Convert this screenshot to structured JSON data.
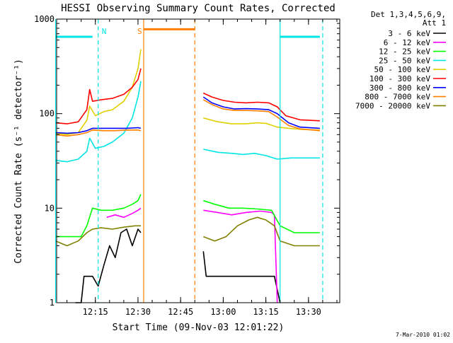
{
  "chart_data": {
    "type": "line",
    "title": "HESSI Observing Summary Count Rates, Corrected",
    "xlabel": "Start Time (09-Nov-03 12:01:22)",
    "ylabel": "Corrected Count Rate (s⁻¹ detector⁻¹)",
    "y_scale": "log",
    "ylim": [
      1,
      1000
    ],
    "y_tick_labels": [
      "1",
      "10",
      "100",
      "1000"
    ],
    "x_unit": "HH:MM (09-Nov-03)",
    "xlim": [
      "12:01:22",
      "13:41:00"
    ],
    "x_tick_labels": [
      "12:15",
      "12:30",
      "12:45",
      "13:00",
      "13:15",
      "13:30"
    ],
    "legend_position": "top-right outside plot",
    "legend_header": [
      "Det 1,3,4,5,6,9,",
      "Att 1"
    ],
    "series": [
      {
        "name": "3 - 6 keV",
        "color": "#000000",
        "segments": [
          [
            [
              "12:08",
              "1.0"
            ],
            [
              "12:10",
              "1.0"
            ],
            [
              "12:11",
              "1.9"
            ],
            [
              "12:14",
              "1.9"
            ],
            [
              "12:16",
              "1.5"
            ],
            [
              "12:18",
              "2.5"
            ],
            [
              "12:20",
              "4.0"
            ],
            [
              "12:22",
              "3.0"
            ],
            [
              "12:24",
              "5.5"
            ],
            [
              "12:26",
              "6.0"
            ],
            [
              "12:28",
              "4.0"
            ],
            [
              "12:30",
              "6.0"
            ],
            [
              "12:31",
              "5.5"
            ]
          ],
          [
            [
              "12:53",
              "3.5"
            ],
            [
              "12:54",
              "1.9"
            ],
            [
              "13:00",
              "1.9"
            ],
            [
              "13:05",
              "1.9"
            ],
            [
              "13:10",
              "1.9"
            ],
            [
              "13:15",
              "1.9"
            ],
            [
              "13:18",
              "1.9"
            ],
            [
              "13:20",
              "1.0"
            ]
          ]
        ]
      },
      {
        "name": "6 - 12 keV",
        "color": "#ff00ff",
        "segments": [
          [
            [
              "12:19",
              "8.0"
            ],
            [
              "12:22",
              "8.5"
            ],
            [
              "12:25",
              "8.0"
            ],
            [
              "12:28",
              "8.8"
            ],
            [
              "12:30",
              "9.5"
            ],
            [
              "12:31",
              "10.0"
            ]
          ],
          [
            [
              "12:53",
              "9.5"
            ],
            [
              "12:58",
              "9.0"
            ],
            [
              "13:03",
              "8.5"
            ],
            [
              "13:08",
              "9.0"
            ],
            [
              "13:13",
              "9.3"
            ],
            [
              "13:17",
              "9.0"
            ],
            [
              "13:18",
              "8.5"
            ],
            [
              "13:19",
              "1.0"
            ]
          ]
        ]
      },
      {
        "name": "12 - 25 keV",
        "color": "#00ff00",
        "segments": [
          [
            [
              "12:01",
              "5.0"
            ],
            [
              "12:05",
              "5.0"
            ],
            [
              "12:10",
              "5.0"
            ],
            [
              "12:12",
              "6.5"
            ],
            [
              "12:14",
              "10.0"
            ],
            [
              "12:17",
              "9.5"
            ],
            [
              "12:21",
              "9.5"
            ],
            [
              "12:25",
              "10.0"
            ],
            [
              "12:28",
              "11.0"
            ],
            [
              "12:30",
              "12.0"
            ],
            [
              "12:31",
              "14.0"
            ]
          ],
          [
            [
              "12:53",
              "12.0"
            ],
            [
              "12:57",
              "11.0"
            ],
            [
              "13:02",
              "10.0"
            ],
            [
              "13:07",
              "10.0"
            ],
            [
              "13:12",
              "9.8"
            ],
            [
              "13:17",
              "9.5"
            ],
            [
              "13:20",
              "6.5"
            ],
            [
              "13:25",
              "5.5"
            ],
            [
              "13:30",
              "5.5"
            ],
            [
              "13:34",
              "5.5"
            ]
          ]
        ]
      },
      {
        "name": "25 - 50 keV",
        "color": "#00e5e5",
        "segments": [
          [
            [
              "12:01",
              "32"
            ],
            [
              "12:05",
              "31"
            ],
            [
              "12:09",
              "33"
            ],
            [
              "12:12",
              "40"
            ],
            [
              "12:13",
              "55"
            ],
            [
              "12:15",
              "43"
            ],
            [
              "12:18",
              "45"
            ],
            [
              "12:21",
              "50"
            ],
            [
              "12:25",
              "62"
            ],
            [
              "12:28",
              "90"
            ],
            [
              "12:30",
              "150"
            ],
            [
              "12:31",
              "220"
            ]
          ],
          [
            [
              "12:53",
              "42"
            ],
            [
              "12:58",
              "39"
            ],
            [
              "13:03",
              "38"
            ],
            [
              "13:07",
              "37"
            ],
            [
              "13:11",
              "38"
            ],
            [
              "13:15",
              "36"
            ],
            [
              "13:19",
              "33"
            ],
            [
              "13:24",
              "34"
            ],
            [
              "13:30",
              "34"
            ],
            [
              "13:34",
              "34"
            ]
          ]
        ]
      },
      {
        "name": "50 - 100 keV",
        "color": "#e0d000",
        "segments": [
          [
            [
              "12:01",
              "62"
            ],
            [
              "12:05",
              "60"
            ],
            [
              "12:09",
              "63"
            ],
            [
              "12:12",
              "85"
            ],
            [
              "12:13",
              "120"
            ],
            [
              "12:15",
              "95"
            ],
            [
              "12:18",
              "105"
            ],
            [
              "12:21",
              "110"
            ],
            [
              "12:25",
              "135"
            ],
            [
              "12:28",
              "190"
            ],
            [
              "12:30",
              "300"
            ],
            [
              "12:31",
              "480"
            ]
          ],
          [
            [
              "12:53",
              "90"
            ],
            [
              "12:58",
              "82"
            ],
            [
              "13:03",
              "78"
            ],
            [
              "13:08",
              "78"
            ],
            [
              "13:12",
              "80"
            ],
            [
              "13:15",
              "79"
            ],
            [
              "13:19",
              "72"
            ],
            [
              "13:23",
              "70"
            ],
            [
              "13:28",
              "68"
            ],
            [
              "13:34",
              "67"
            ]
          ]
        ]
      },
      {
        "name": "100 - 300 keV",
        "color": "#ff0000",
        "segments": [
          [
            [
              "12:01",
              "80"
            ],
            [
              "12:05",
              "78"
            ],
            [
              "12:09",
              "82"
            ],
            [
              "12:12",
              "110"
            ],
            [
              "12:13",
              "180"
            ],
            [
              "12:14",
              "135"
            ],
            [
              "12:17",
              "140"
            ],
            [
              "12:21",
              "145"
            ],
            [
              "12:25",
              "160"
            ],
            [
              "12:28",
              "190"
            ],
            [
              "12:30",
              "230"
            ],
            [
              "12:31",
              "300"
            ]
          ],
          [
            [
              "12:53",
              "165"
            ],
            [
              "12:56",
              "150"
            ],
            [
              "13:00",
              "138"
            ],
            [
              "13:04",
              "132"
            ],
            [
              "13:08",
              "130"
            ],
            [
              "13:12",
              "132"
            ],
            [
              "13:16",
              "130"
            ],
            [
              "13:19",
              "118"
            ],
            [
              "13:22",
              "95"
            ],
            [
              "13:27",
              "86"
            ],
            [
              "13:34",
              "84"
            ]
          ]
        ]
      },
      {
        "name": "300 - 800 keV",
        "color": "#0000ff",
        "segments": [
          [
            [
              "12:01",
              "63"
            ],
            [
              "12:05",
              "62"
            ],
            [
              "12:09",
              "63"
            ],
            [
              "12:12",
              "66"
            ],
            [
              "12:14",
              "70"
            ],
            [
              "12:18",
              "70"
            ],
            [
              "12:22",
              "70"
            ],
            [
              "12:26",
              "70"
            ],
            [
              "12:30",
              "71"
            ],
            [
              "12:31",
              "70"
            ]
          ],
          [
            [
              "12:53",
              "150"
            ],
            [
              "12:56",
              "130"
            ],
            [
              "13:00",
              "118"
            ],
            [
              "13:04",
              "112"
            ],
            [
              "13:08",
              "113"
            ],
            [
              "13:12",
              "112"
            ],
            [
              "13:16",
              "110"
            ],
            [
              "13:19",
              "100"
            ],
            [
              "13:23",
              "80"
            ],
            [
              "13:27",
              "72"
            ],
            [
              "13:34",
              "70"
            ]
          ]
        ]
      },
      {
        "name": "800 - 7000 keV",
        "color": "#ff8000",
        "segments": [
          [
            [
              "12:01",
              "60"
            ],
            [
              "12:05",
              "58"
            ],
            [
              "12:09",
              "60"
            ],
            [
              "12:12",
              "63"
            ],
            [
              "12:14",
              "67"
            ],
            [
              "12:18",
              "66"
            ],
            [
              "12:22",
              "66"
            ],
            [
              "12:26",
              "67"
            ],
            [
              "12:30",
              "67"
            ],
            [
              "12:31",
              "66"
            ]
          ],
          [
            [
              "12:53",
              "140"
            ],
            [
              "12:56",
              "125"
            ],
            [
              "13:00",
              "112"
            ],
            [
              "13:04",
              "108"
            ],
            [
              "13:08",
              "108"
            ],
            [
              "13:12",
              "107"
            ],
            [
              "13:16",
              "105"
            ],
            [
              "13:19",
              "92"
            ],
            [
              "13:23",
              "75"
            ],
            [
              "13:27",
              "69"
            ],
            [
              "13:34",
              "66"
            ]
          ]
        ]
      },
      {
        "name": "7000 - 20000 keV",
        "color": "#808000",
        "segments": [
          [
            [
              "12:01",
              "4.5"
            ],
            [
              "12:05",
              "4.0"
            ],
            [
              "12:09",
              "4.5"
            ],
            [
              "12:12",
              "5.5"
            ],
            [
              "12:14",
              "6.0"
            ],
            [
              "12:17",
              "6.2"
            ],
            [
              "12:21",
              "6.0"
            ],
            [
              "12:25",
              "6.3"
            ],
            [
              "12:29",
              "6.5"
            ],
            [
              "12:31",
              "6.5"
            ]
          ],
          [
            [
              "12:53",
              "5.0"
            ],
            [
              "12:57",
              "4.5"
            ],
            [
              "13:01",
              "5.0"
            ],
            [
              "13:05",
              "6.5"
            ],
            [
              "13:09",
              "7.5"
            ],
            [
              "13:12",
              "8.0"
            ],
            [
              "13:15",
              "7.5"
            ],
            [
              "13:18",
              "6.5"
            ],
            [
              "13:20",
              "4.5"
            ],
            [
              "13:25",
              "4.0"
            ],
            [
              "13:30",
              "4.0"
            ],
            [
              "13:34",
              "4.0"
            ]
          ]
        ]
      }
    ],
    "state_bars": [
      {
        "label": "",
        "color": "#00e5e5",
        "from": "12:01",
        "to": "12:14",
        "y": "650"
      },
      {
        "label": "",
        "color": "#ff8000",
        "from": "12:32",
        "to": "12:50",
        "y": "780"
      },
      {
        "label": "",
        "color": "#00e5e5",
        "from": "13:20",
        "to": "13:34",
        "y": "650"
      }
    ],
    "markers": [
      {
        "time": "12:01",
        "color": "#00e5e5",
        "style": "solid",
        "label": ""
      },
      {
        "time": "12:16",
        "color": "#00e5e5",
        "style": "dashed",
        "label": "N"
      },
      {
        "time": "12:32",
        "color": "#ff8000",
        "style": "solid",
        "label": "S"
      },
      {
        "time": "12:50",
        "color": "#ff8000",
        "style": "dashed",
        "label": ""
      },
      {
        "time": "13:20",
        "color": "#00e5e5",
        "style": "solid",
        "label": ""
      },
      {
        "time": "13:35",
        "color": "#00e5e5",
        "style": "dashed",
        "label": ""
      }
    ]
  },
  "footer": {
    "timestamp": "7-Mar-2010 01:02"
  }
}
